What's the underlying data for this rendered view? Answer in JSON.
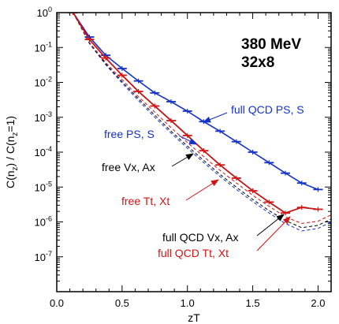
{
  "chart_data": {
    "type": "line",
    "title": "",
    "xlabel": "zT",
    "ylabel": "C(n_z) / C(n_z=1)",
    "xlim": [
      0.0,
      2.1
    ],
    "ylim": [
      1e-08,
      1
    ],
    "y_scale": "log",
    "grid": false,
    "x_ticks": [
      0.0,
      0.5,
      1.0,
      1.5,
      2.0
    ],
    "x_tick_labels": [
      "0.0",
      "0.5",
      "1.0",
      "1.5",
      "2.0"
    ],
    "y_ticks": [
      1,
      0.1,
      0.01,
      0.001,
      0.0001,
      1e-05,
      1e-06,
      1e-07
    ],
    "y_tick_labels": [
      {
        "base": "10",
        "exp": "0"
      },
      {
        "base": "10",
        "exp": "-1"
      },
      {
        "base": "10",
        "exp": "-2"
      },
      {
        "base": "10",
        "exp": "-3"
      },
      {
        "base": "10",
        "exp": "-4"
      },
      {
        "base": "10",
        "exp": "-5"
      },
      {
        "base": "10",
        "exp": "-6"
      },
      {
        "base": "10",
        "exp": "-7"
      }
    ],
    "ylabel_parts": {
      "a": "C(n",
      "a_sub": "z",
      "b": ") / C(n",
      "b_sub": "z",
      "c": "=1)"
    },
    "text_labels": [
      "380 MeV",
      "32x8"
    ],
    "series": [
      {
        "name": "full QCD PS, S",
        "color": "#1432c8",
        "style": "solid-with-errorbars",
        "x": [
          0.125,
          0.25,
          0.375,
          0.5,
          0.625,
          0.75,
          0.875,
          1.0,
          1.125,
          1.25,
          1.375,
          1.5,
          1.625,
          1.75,
          1.875,
          2.0
        ],
        "y": [
          1.0,
          0.2,
          0.06,
          0.025,
          0.011,
          0.005,
          0.0028,
          0.0015,
          0.00075,
          0.0004,
          0.0002,
          0.0001,
          5e-05,
          2.5e-05,
          1.3e-05,
          8.5e-06
        ]
      },
      {
        "name": "full QCD Vx, Ax",
        "color": "#000000",
        "style": "solid",
        "x": [
          0.125,
          0.25,
          0.375,
          0.5,
          0.625,
          0.75,
          0.875,
          1.0,
          1.125,
          1.25,
          1.375,
          1.5,
          1.625,
          1.75,
          1.875,
          2.0
        ],
        "y": [
          1.0,
          0.17,
          0.05,
          0.016,
          0.0055,
          0.0021,
          0.0008,
          0.0003,
          0.00011,
          4.3e-05,
          1.8e-05,
          7.8e-06,
          3.7e-06,
          1.8e-06,
          2.6e-06,
          2.3e-06
        ]
      },
      {
        "name": "full QCD Tt, Xt",
        "color": "#d21414",
        "style": "solid-with-errorbars",
        "x": [
          0.125,
          0.25,
          0.375,
          0.5,
          0.625,
          0.75,
          0.875,
          1.0,
          1.125,
          1.25,
          1.375,
          1.5,
          1.625,
          1.75,
          1.875,
          2.0
        ],
        "y": [
          1.0,
          0.17,
          0.05,
          0.016,
          0.0055,
          0.0021,
          0.0008,
          0.0003,
          0.00011,
          4.3e-05,
          1.8e-05,
          7.8e-06,
          3.7e-06,
          1.8e-06,
          2.6e-06,
          2.3e-06
        ]
      },
      {
        "name": "free PS, S",
        "color": "#1432c8",
        "style": "dashed",
        "x": [
          0.125,
          0.25,
          0.375,
          0.5,
          0.625,
          0.75,
          0.875,
          1.0,
          1.125,
          1.25,
          1.375,
          1.5,
          1.625,
          1.75,
          1.875,
          2.0,
          2.1
        ],
        "y": [
          1.0,
          0.13,
          0.032,
          0.0095,
          0.003,
          0.001,
          0.00035,
          0.00013,
          5e-05,
          2e-05,
          8.5e-06,
          3.8e-06,
          1.8e-06,
          9e-07,
          5.5e-07,
          6.5e-07,
          1e-06
        ]
      },
      {
        "name": "free Vx, Ax",
        "color": "#000000",
        "style": "dashed",
        "x": [
          0.125,
          0.25,
          0.375,
          0.5,
          0.625,
          0.75,
          0.875,
          1.0,
          1.125,
          1.25,
          1.375,
          1.5,
          1.625,
          1.75,
          1.875,
          2.0,
          2.1
        ],
        "y": [
          1.0,
          0.135,
          0.034,
          0.0105,
          0.0034,
          0.00115,
          0.0004,
          0.00015,
          5.8e-05,
          2.3e-05,
          9.8e-06,
          4.4e-06,
          2.1e-06,
          1.1e-06,
          6.8e-07,
          8e-07,
          1.2e-06
        ]
      },
      {
        "name": "free Tt, Xt",
        "color": "#d21414",
        "style": "dashed",
        "x": [
          0.125,
          0.25,
          0.375,
          0.5,
          0.625,
          0.75,
          0.875,
          1.0,
          1.125,
          1.25,
          1.375,
          1.5,
          1.625,
          1.75,
          1.875,
          2.0,
          2.1
        ],
        "y": [
          1.0,
          0.14,
          0.037,
          0.012,
          0.0039,
          0.0014,
          0.0005,
          0.00019,
          7.4e-05,
          3e-05,
          1.3e-05,
          5.8e-06,
          2.8e-06,
          1.4e-06,
          9e-07,
          1.05e-06,
          1.6e-06
        ]
      }
    ],
    "annotations": [
      {
        "text": "full QCD PS, S",
        "color": "#1432c8"
      },
      {
        "text": "free PS, S",
        "color": "#1432c8"
      },
      {
        "text": "free Vx, Ax",
        "color": "#000000"
      },
      {
        "text": "free Tt, Xt",
        "color": "#d21414"
      },
      {
        "text": "full QCD Vx, Ax",
        "color": "#000000"
      },
      {
        "text": "full QCD Tt, Xt",
        "color": "#d21414"
      }
    ]
  }
}
